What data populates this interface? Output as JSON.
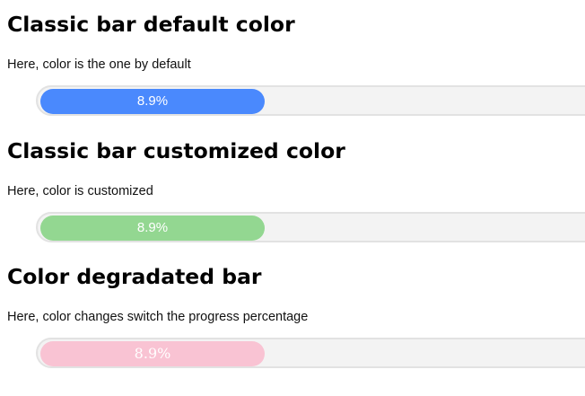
{
  "sections": [
    {
      "title": "Classic bar default color",
      "description": "Here, color is the one by default",
      "progress_percent": 8.9,
      "label": "8.9%",
      "color": "#4a89fd"
    },
    {
      "title": "Classic bar customized color",
      "description": "Here, color is customized",
      "progress_percent": 8.9,
      "label": "8.9%",
      "color": "#93d791"
    },
    {
      "title": "Color degradated bar",
      "description": "Here, color changes switch the progress percentage",
      "progress_percent": 8.9,
      "label": "8.9%",
      "color": "#f9c3d3"
    }
  ]
}
